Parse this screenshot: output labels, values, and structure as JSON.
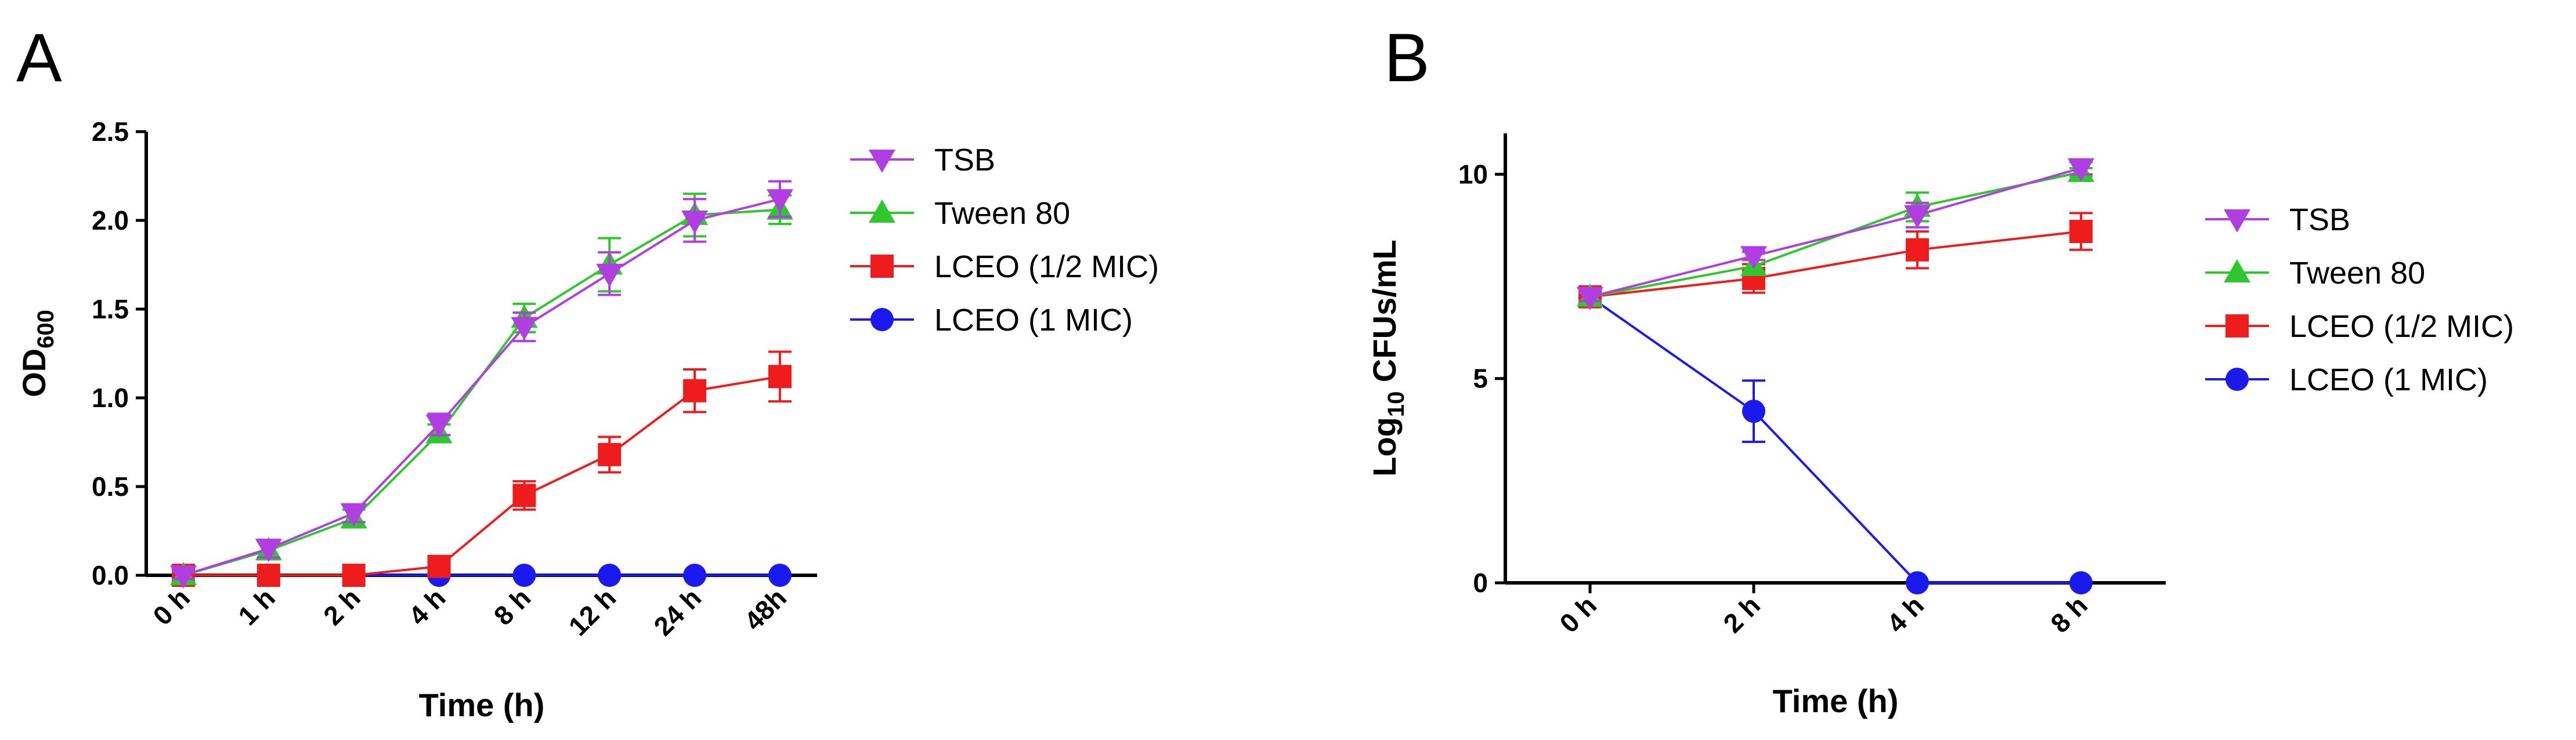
{
  "chart_data": [
    {
      "panel": "A",
      "type": "line",
      "xlabel": "Time (h)",
      "ylabel_main": "OD",
      "ylabel_sub": "600",
      "categories": [
        "0 h",
        "1 h",
        "2 h",
        "4 h",
        "8 h",
        "12 h",
        "24 h",
        "48h"
      ],
      "ylim": [
        0,
        2.5
      ],
      "yticks": [
        "0.0",
        "0.5",
        "1.0",
        "1.5",
        "2.0",
        "2.5"
      ],
      "grid": false,
      "legend_position": "right",
      "series": [
        {
          "name": "TSB",
          "marker": "triangle-down",
          "color": "#b03ee0",
          "values": [
            0.0,
            0.15,
            0.35,
            0.85,
            1.4,
            1.7,
            2.0,
            2.12
          ],
          "errors": [
            0.02,
            0.05,
            0.05,
            0.06,
            0.08,
            0.12,
            0.12,
            0.1
          ]
        },
        {
          "name": "Tween 80",
          "marker": "triangle-up",
          "color": "#2ec82e",
          "values": [
            0.0,
            0.14,
            0.32,
            0.8,
            1.45,
            1.75,
            2.03,
            2.06
          ],
          "errors": [
            0.02,
            0.05,
            0.05,
            0.05,
            0.08,
            0.15,
            0.12,
            0.08
          ]
        },
        {
          "name": "LCEO (1/2 MIC)",
          "marker": "square",
          "color": "#ee1c1c",
          "values": [
            0.0,
            0.0,
            0.0,
            0.05,
            0.45,
            0.68,
            1.04,
            1.12
          ],
          "errors": [
            0.0,
            0.0,
            0.0,
            0.02,
            0.08,
            0.1,
            0.12,
            0.14
          ]
        },
        {
          "name": "LCEO (1 MIC)",
          "marker": "circle",
          "color": "#1a1aee",
          "values": [
            0.0,
            0.0,
            0.0,
            0.0,
            0.0,
            0.0,
            0.0,
            0.0
          ],
          "errors": [
            0,
            0,
            0,
            0,
            0,
            0,
            0,
            0
          ]
        }
      ]
    },
    {
      "panel": "B",
      "type": "line",
      "xlabel": "Time (h)",
      "ylabel_main": "Log",
      "ylabel_sub": "10",
      "ylabel_rest": " CFUs/mL",
      "categories": [
        "0 h",
        "2 h",
        "4 h",
        "8 h"
      ],
      "ylim": [
        0,
        11
      ],
      "yticks": [
        "0",
        "5",
        "10"
      ],
      "grid": false,
      "legend_position": "right",
      "series": [
        {
          "name": "TSB",
          "marker": "triangle-down",
          "color": "#b03ee0",
          "values": [
            7.0,
            8.0,
            9.0,
            10.15
          ],
          "errors": [
            0.1,
            0.1,
            0.3,
            0.15
          ]
        },
        {
          "name": "Tween 80",
          "marker": "triangle-up",
          "color": "#2ec82e",
          "values": [
            7.0,
            7.75,
            9.2,
            10.05
          ],
          "errors": [
            0.1,
            0.15,
            0.35,
            0.1
          ]
        },
        {
          "name": "LCEO (1/2 MIC)",
          "marker": "square",
          "color": "#ee1c1c",
          "values": [
            7.0,
            7.45,
            8.15,
            8.6
          ],
          "errors": [
            0.15,
            0.35,
            0.45,
            0.45
          ]
        },
        {
          "name": "LCEO (1 MIC)",
          "marker": "circle",
          "color": "#1a1aee",
          "values": [
            7.0,
            4.2,
            0.0,
            0.0
          ],
          "errors": [
            0.1,
            0.75,
            0.0,
            0.0
          ]
        }
      ]
    }
  ]
}
